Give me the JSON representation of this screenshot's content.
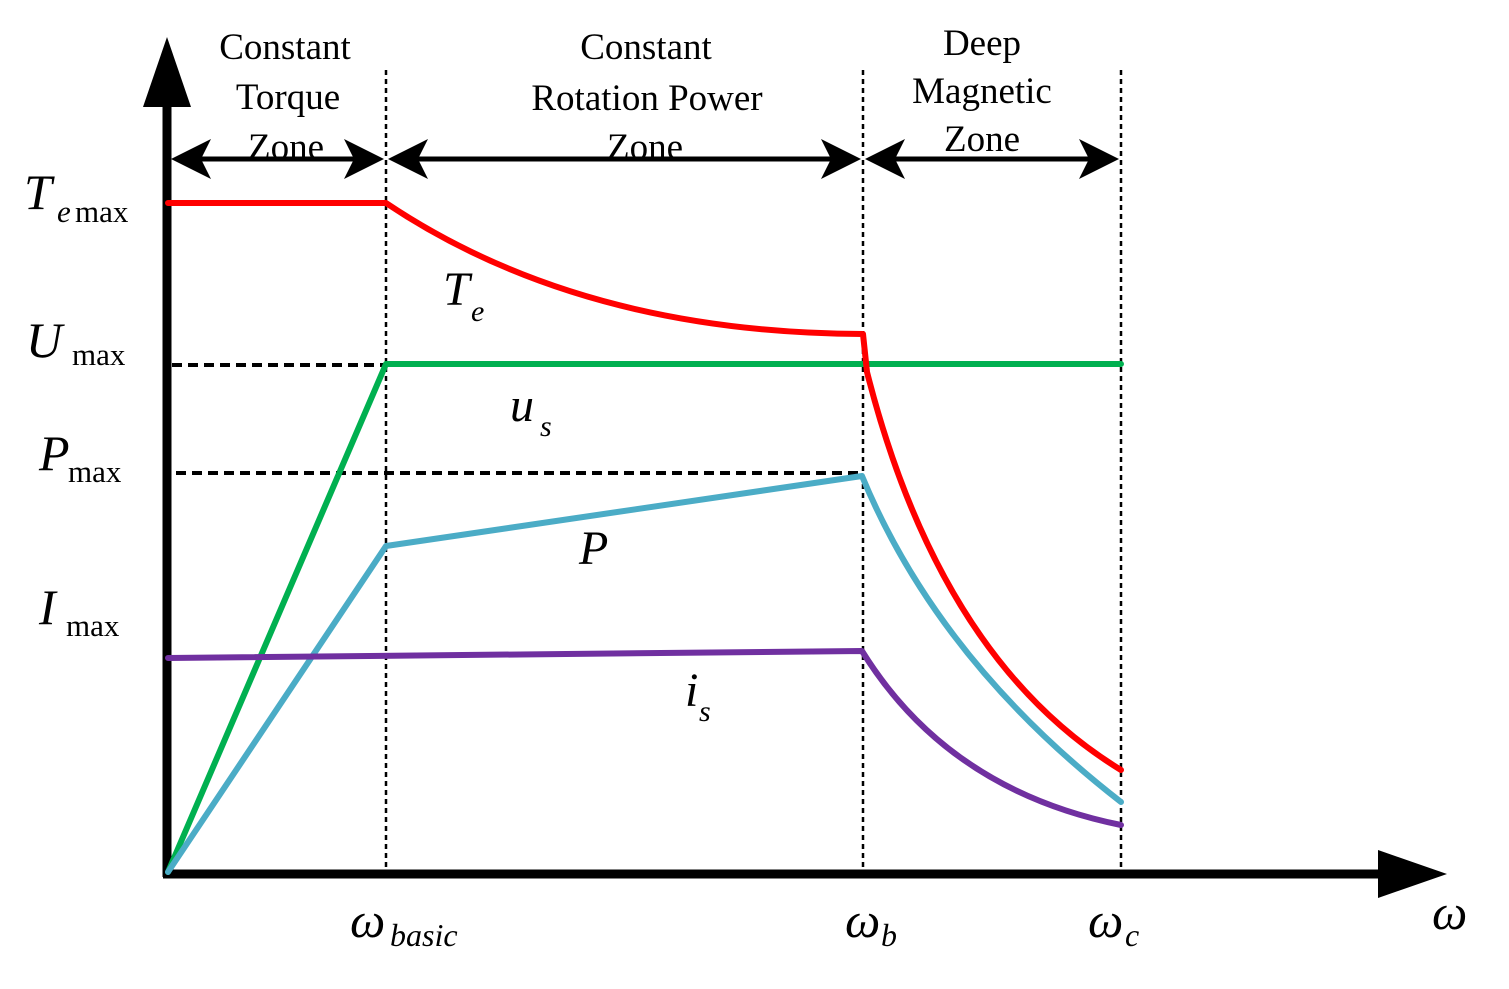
{
  "zones": [
    {
      "lines": [
        "Constant",
        "Torque",
        "Zone"
      ]
    },
    {
      "lines": [
        "Constant",
        "Rotation Power",
        "Zone"
      ]
    },
    {
      "lines": [
        "Deep",
        "Magnetic",
        "Zone"
      ]
    }
  ],
  "y_labels": {
    "te_max": {
      "main": "T",
      "sub1": "e",
      "sub2": "max"
    },
    "u_max": {
      "main": "U",
      "sub": "max"
    },
    "p_max": {
      "main": "P",
      "sub": "max"
    },
    "i_max": {
      "main": "I",
      "sub": "max"
    }
  },
  "curve_labels": {
    "te": {
      "main": "T",
      "sub": "e"
    },
    "us": {
      "main": "u",
      "sub": "s"
    },
    "p": {
      "main": "P"
    },
    "is": {
      "main": "i",
      "sub": "s"
    }
  },
  "x_labels": {
    "w_basic": {
      "main": "ω",
      "sub": "basic"
    },
    "w_b": {
      "main": "ω",
      "sub": "b"
    },
    "w_c": {
      "main": "ω",
      "sub": "c"
    },
    "w_axis": {
      "main": "ω"
    }
  },
  "colors": {
    "torque": "#ff0000",
    "voltage": "#00b050",
    "power": "#4bacc6",
    "current": "#7030a0",
    "axis": "#000000"
  }
}
